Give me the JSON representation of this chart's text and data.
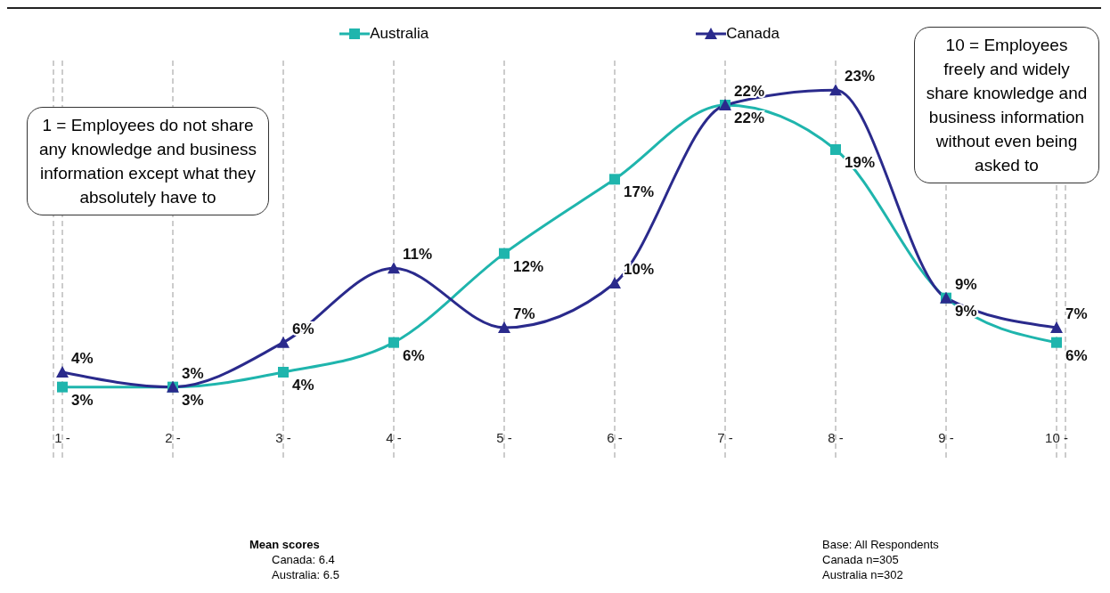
{
  "chart_data": {
    "type": "line",
    "categories": [
      "1 -",
      "2 -",
      "3 -",
      "4 -",
      "5 -",
      "6 -",
      "7 -",
      "8 -",
      "9 -",
      "10 -"
    ],
    "series": [
      {
        "name": "Australia",
        "color": "#1fb5ad",
        "marker": "square",
        "values": [
          3,
          3,
          4,
          6,
          12,
          17,
          22,
          19,
          9,
          6
        ],
        "value_labels": [
          "3%",
          "3%",
          "4%",
          "6%",
          "12%",
          "17%",
          "22%",
          "19%",
          "9%",
          "6%"
        ]
      },
      {
        "name": "Canada",
        "color": "#2a2a8c",
        "marker": "triangle",
        "values": [
          4,
          3,
          6,
          11,
          7,
          10,
          22,
          23,
          9,
          7
        ],
        "value_labels": [
          "4%",
          "3%",
          "6%",
          "11%",
          "7%",
          "10%",
          "22%",
          "23%",
          "9%",
          "7%"
        ]
      }
    ],
    "grid": "x",
    "legend": "top",
    "line_style": "solid",
    "annotations": [
      "1 = Employees do not share any knowledge and business information except what they absolutely have to",
      "10 = Employees freely and widely share knowledge and business information without even being asked to",
      "Mean scores",
      "Canada: 6.4",
      "Australia: 6.5",
      "Base: All Respondents",
      "Canada n=305",
      "Australia n=302"
    ]
  }
}
